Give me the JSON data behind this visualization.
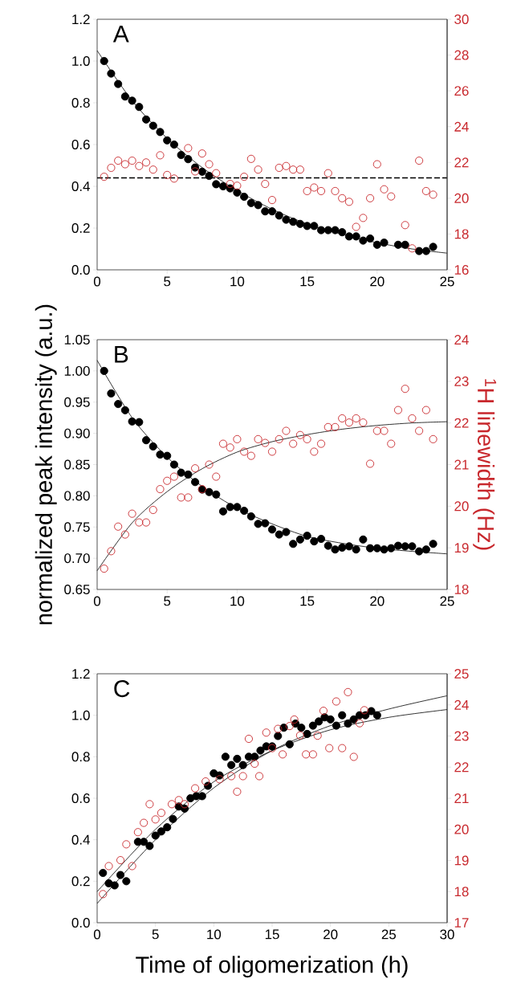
{
  "chart_data": [
    {
      "type": "scatter",
      "marker": "circle",
      "xlim": [
        0,
        25
      ],
      "xticks": [
        0,
        5,
        10,
        15,
        20,
        25
      ],
      "ylim": [
        0,
        1.2
      ],
      "yticks": [
        {
          "value": 0,
          "label": "0.0"
        },
        0.2,
        0.4,
        0.6,
        0.8,
        {
          "value": 1,
          "label": "1.0"
        },
        1.2
      ],
      "y2lim": [
        16,
        30
      ],
      "y2ticks": [
        16,
        18,
        20,
        22,
        24,
        26,
        28,
        30
      ],
      "annotations": [
        "A"
      ],
      "ref_lines": [
        {
          "axis": "y",
          "value": 0.44,
          "color": "#000000",
          "line_style": "dashed"
        }
      ],
      "series": [
        {
          "color": "#000000",
          "x": [
            0.5,
            1,
            1.5,
            2,
            2.5,
            3,
            3.5,
            4,
            4.5,
            5,
            5.5,
            6,
            6.5,
            7,
            7.5,
            8,
            8.5,
            9,
            9.5,
            10,
            10.5,
            11,
            11.5,
            12,
            12.5,
            13,
            13.5,
            14,
            14.5,
            15,
            15.5,
            16,
            16.5,
            17,
            17.5,
            18,
            18.5,
            19,
            19.5,
            20,
            20.5,
            21.5,
            22,
            23,
            23.5,
            24
          ],
          "values": [
            1.0,
            0.94,
            0.89,
            0.83,
            0.81,
            0.78,
            0.72,
            0.69,
            0.66,
            0.62,
            0.6,
            0.55,
            0.53,
            0.49,
            0.47,
            0.45,
            0.41,
            0.4,
            0.39,
            0.37,
            0.35,
            0.32,
            0.31,
            0.28,
            0.28,
            0.26,
            0.24,
            0.23,
            0.22,
            0.21,
            0.21,
            0.19,
            0.19,
            0.19,
            0.18,
            0.16,
            0.16,
            0.14,
            0.15,
            0.12,
            0.13,
            0.12,
            0.12,
            0.09,
            0.09,
            0.11
          ]
        },
        {
          "color": "#c8282d",
          "axis": "y2",
          "x": [
            0.5,
            1,
            1.5,
            2,
            2.5,
            3,
            3.5,
            4,
            4.5,
            5,
            5.5,
            6.5,
            7,
            7.5,
            8,
            8.5,
            9.5,
            10,
            10.5,
            11,
            11.5,
            12,
            12.5,
            13,
            13.5,
            14,
            14.5,
            15,
            15.5,
            16,
            16.5,
            17,
            17.5,
            18,
            18.5,
            19,
            19.5,
            20,
            20.5,
            21,
            22,
            22.5,
            23,
            23.5,
            24
          ],
          "values": [
            21.2,
            21.7,
            22.1,
            21.9,
            22.1,
            21.8,
            22.0,
            21.6,
            22.4,
            21.3,
            21.1,
            22.8,
            21.5,
            22.5,
            21.9,
            21.4,
            20.8,
            20.7,
            21.2,
            22.2,
            21.6,
            20.8,
            19.9,
            21.7,
            21.8,
            21.6,
            21.6,
            20.4,
            20.6,
            20.4,
            21.4,
            20.4,
            20.0,
            19.8,
            18.4,
            18.9,
            20.0,
            21.9,
            20.5,
            20.1,
            18.5,
            17.2,
            22.1,
            20.4,
            20.2
          ]
        },
        {
          "type": "line",
          "marker": "none",
          "line_style": "solid",
          "color": "#000000",
          "x": [
            0,
            2.5,
            5,
            7.5,
            10,
            12.5,
            15,
            17.5,
            20,
            22.5,
            25
          ],
          "values": [
            1.05,
            0.81,
            0.63,
            0.49,
            0.38,
            0.29,
            0.22,
            0.17,
            0.13,
            0.1,
            0.08
          ]
        }
      ]
    },
    {
      "type": "scatter",
      "marker": "circle",
      "xlim": [
        0,
        25
      ],
      "xticks": [
        0,
        5,
        10,
        15,
        20,
        25
      ],
      "ylim": [
        0.65,
        1.05
      ],
      "yticks": [
        0.65,
        {
          "value": 0.7,
          "label": "0.70"
        },
        0.75,
        {
          "value": 0.8,
          "label": "0.80"
        },
        0.85,
        {
          "value": 0.9,
          "label": "0.90"
        },
        0.95,
        {
          "value": 1,
          "label": "1.00"
        },
        1.05
      ],
      "y2lim": [
        18,
        24
      ],
      "y2ticks": [
        18,
        19,
        20,
        21,
        22,
        23,
        24
      ],
      "ylabel": "normalized peak intensity (a.u.)",
      "y2label": "$^{1}$H linewidth (Hz)",
      "annotations": [
        "B"
      ],
      "series": [
        {
          "color": "#000000",
          "x": [
            0.5,
            1,
            1.5,
            2,
            2.5,
            3,
            3.5,
            4,
            4.5,
            5,
            5.5,
            6,
            6.5,
            7,
            7.5,
            8,
            8.5,
            9,
            9.5,
            10,
            10.5,
            11,
            11.5,
            12,
            12.5,
            13,
            13.5,
            14,
            14.5,
            15,
            15.5,
            16,
            16.5,
            17,
            17.5,
            18,
            18.5,
            19,
            19.5,
            20,
            20.5,
            21,
            21.5,
            22,
            22.5,
            23,
            23.5,
            24
          ],
          "values": [
            1.0,
            0.964,
            0.947,
            0.937,
            0.919,
            0.918,
            0.889,
            0.879,
            0.866,
            0.864,
            0.85,
            0.837,
            0.834,
            0.822,
            0.81,
            0.806,
            0.802,
            0.775,
            0.782,
            0.782,
            0.776,
            0.767,
            0.755,
            0.756,
            0.746,
            0.738,
            0.742,
            0.723,
            0.73,
            0.736,
            0.727,
            0.731,
            0.72,
            0.714,
            0.717,
            0.719,
            0.714,
            0.73,
            0.716,
            0.716,
            0.714,
            0.716,
            0.72,
            0.719,
            0.719,
            0.711,
            0.714,
            0.723
          ]
        },
        {
          "color": "#c8282d",
          "axis": "y2",
          "x": [
            0.5,
            1,
            1.5,
            2,
            2.5,
            3,
            3.5,
            4,
            4.5,
            5,
            5.5,
            6,
            6.5,
            7,
            7.5,
            8,
            8.5,
            9,
            9.5,
            10,
            10.5,
            11,
            11.5,
            12,
            12.5,
            13,
            13.5,
            14,
            14.5,
            15,
            15.5,
            16,
            16.5,
            17,
            17.5,
            18,
            18.5,
            19,
            19.5,
            20,
            20.5,
            21,
            21.5,
            22,
            22.5,
            23,
            23.5,
            24
          ],
          "values": [
            18.5,
            18.92,
            19.51,
            19.32,
            19.82,
            19.61,
            19.61,
            19.91,
            20.41,
            20.61,
            20.71,
            20.21,
            20.21,
            20.91,
            20.41,
            21.0,
            20.71,
            21.5,
            21.41,
            21.61,
            21.31,
            21.21,
            21.61,
            21.52,
            21.31,
            21.61,
            21.81,
            21.5,
            21.71,
            21.61,
            21.31,
            21.5,
            21.9,
            21.9,
            22.11,
            22.01,
            22.11,
            22.01,
            21.02,
            21.81,
            21.81,
            21.5,
            22.31,
            22.82,
            22.11,
            21.81,
            22.31,
            21.61
          ]
        },
        {
          "type": "line",
          "marker": "none",
          "line_style": "solid",
          "color": "#000000",
          "x": [
            0,
            2.5,
            5,
            7.5,
            10,
            12.5,
            15,
            17.5,
            20,
            22.5,
            25
          ],
          "values": [
            1.017,
            0.925,
            0.862,
            0.815,
            0.78,
            0.755,
            0.735,
            0.724,
            0.716,
            0.711,
            0.707
          ]
        },
        {
          "type": "line",
          "marker": "none",
          "line_style": "solid",
          "color": "#000000",
          "axis": "y2",
          "x": [
            0,
            2.5,
            5,
            7.5,
            10,
            12.5,
            15,
            17.5,
            20,
            22.5,
            25
          ],
          "values": [
            18.45,
            19.6,
            20.35,
            20.9,
            21.3,
            21.55,
            21.72,
            21.85,
            21.94,
            22.0,
            22.03
          ]
        }
      ]
    },
    {
      "type": "scatter",
      "marker": "circle",
      "xlim": [
        0,
        30
      ],
      "xticks": [
        0,
        5,
        10,
        15,
        20,
        25,
        30
      ],
      "ylim": [
        0,
        1.2
      ],
      "yticks": [
        {
          "value": 0,
          "label": "0.0"
        },
        0.2,
        0.4,
        0.6,
        0.8,
        {
          "value": 1,
          "label": "1.0"
        },
        1.2
      ],
      "y2lim": [
        17,
        25
      ],
      "y2ticks": [
        17,
        18,
        19,
        20,
        21,
        22,
        23,
        24,
        25
      ],
      "xlabel": "Time of oligomerization (h)",
      "annotations": [
        "C"
      ],
      "series": [
        {
          "color": "#000000",
          "x": [
            0.5,
            1,
            1.5,
            2,
            2.5,
            3.5,
            4,
            4.5,
            5,
            5.5,
            6,
            6.5,
            7,
            7.5,
            8,
            8.5,
            9,
            9.5,
            10,
            10.5,
            11,
            11.5,
            12,
            12.5,
            13,
            13.5,
            14,
            14.5,
            15,
            15.5,
            16,
            16.5,
            17,
            17.5,
            18,
            18.5,
            19,
            19.5,
            20,
            20.5,
            21,
            21.5,
            22,
            22.5,
            23,
            23.5,
            24
          ],
          "values": [
            0.24,
            0.19,
            0.18,
            0.23,
            0.2,
            0.39,
            0.39,
            0.37,
            0.42,
            0.44,
            0.46,
            0.5,
            0.56,
            0.55,
            0.6,
            0.61,
            0.61,
            0.66,
            0.72,
            0.71,
            0.8,
            0.76,
            0.79,
            0.76,
            0.8,
            0.8,
            0.83,
            0.85,
            0.85,
            0.9,
            0.94,
            0.86,
            0.96,
            0.94,
            0.91,
            0.95,
            0.97,
            0.99,
            0.98,
            0.95,
            1.0,
            0.96,
            0.98,
            1.0,
            1.0,
            1.02,
            1.0
          ]
        },
        {
          "color": "#c8282d",
          "axis": "y2",
          "x": [
            0.5,
            1,
            2,
            2.5,
            3,
            3.5,
            4,
            4.5,
            5,
            5.5,
            6.4,
            7,
            7.5,
            8.4,
            9.3,
            10.5,
            11.5,
            12,
            12.5,
            13,
            13.5,
            13.9,
            14.5,
            15,
            15.5,
            15.9,
            16.5,
            16.9,
            17.4,
            17.9,
            18.5,
            18.9,
            19.4,
            19.9,
            20.5,
            21,
            21.5,
            22,
            22.5,
            22.9
          ],
          "values": [
            17.92,
            18.82,
            19.01,
            19.52,
            18.82,
            19.91,
            20.21,
            20.81,
            20.32,
            20.53,
            20.81,
            20.94,
            20.81,
            21.32,
            21.54,
            21.61,
            21.71,
            21.21,
            21.71,
            22.91,
            22.11,
            21.71,
            23.11,
            22.61,
            23.23,
            22.41,
            23.32,
            23.53,
            23.02,
            22.41,
            22.41,
            23.01,
            23.81,
            22.61,
            24.11,
            22.61,
            24.41,
            22.33,
            23.41,
            23.83
          ]
        },
        {
          "type": "line",
          "marker": "none",
          "line_style": "solid",
          "color": "#000000",
          "x": [
            0,
            5,
            10,
            15,
            20,
            25,
            30
          ],
          "values": [
            0.093,
            0.4,
            0.65,
            0.83,
            0.95,
            1.03,
            1.094
          ]
        },
        {
          "type": "line",
          "marker": "none",
          "line_style": "solid",
          "color": "#000000",
          "axis": "y2",
          "x": [
            0,
            5,
            10,
            15,
            20,
            25,
            30
          ],
          "values": [
            18.0,
            20.0,
            21.53,
            22.53,
            23.2,
            23.6,
            23.85
          ]
        }
      ]
    }
  ]
}
